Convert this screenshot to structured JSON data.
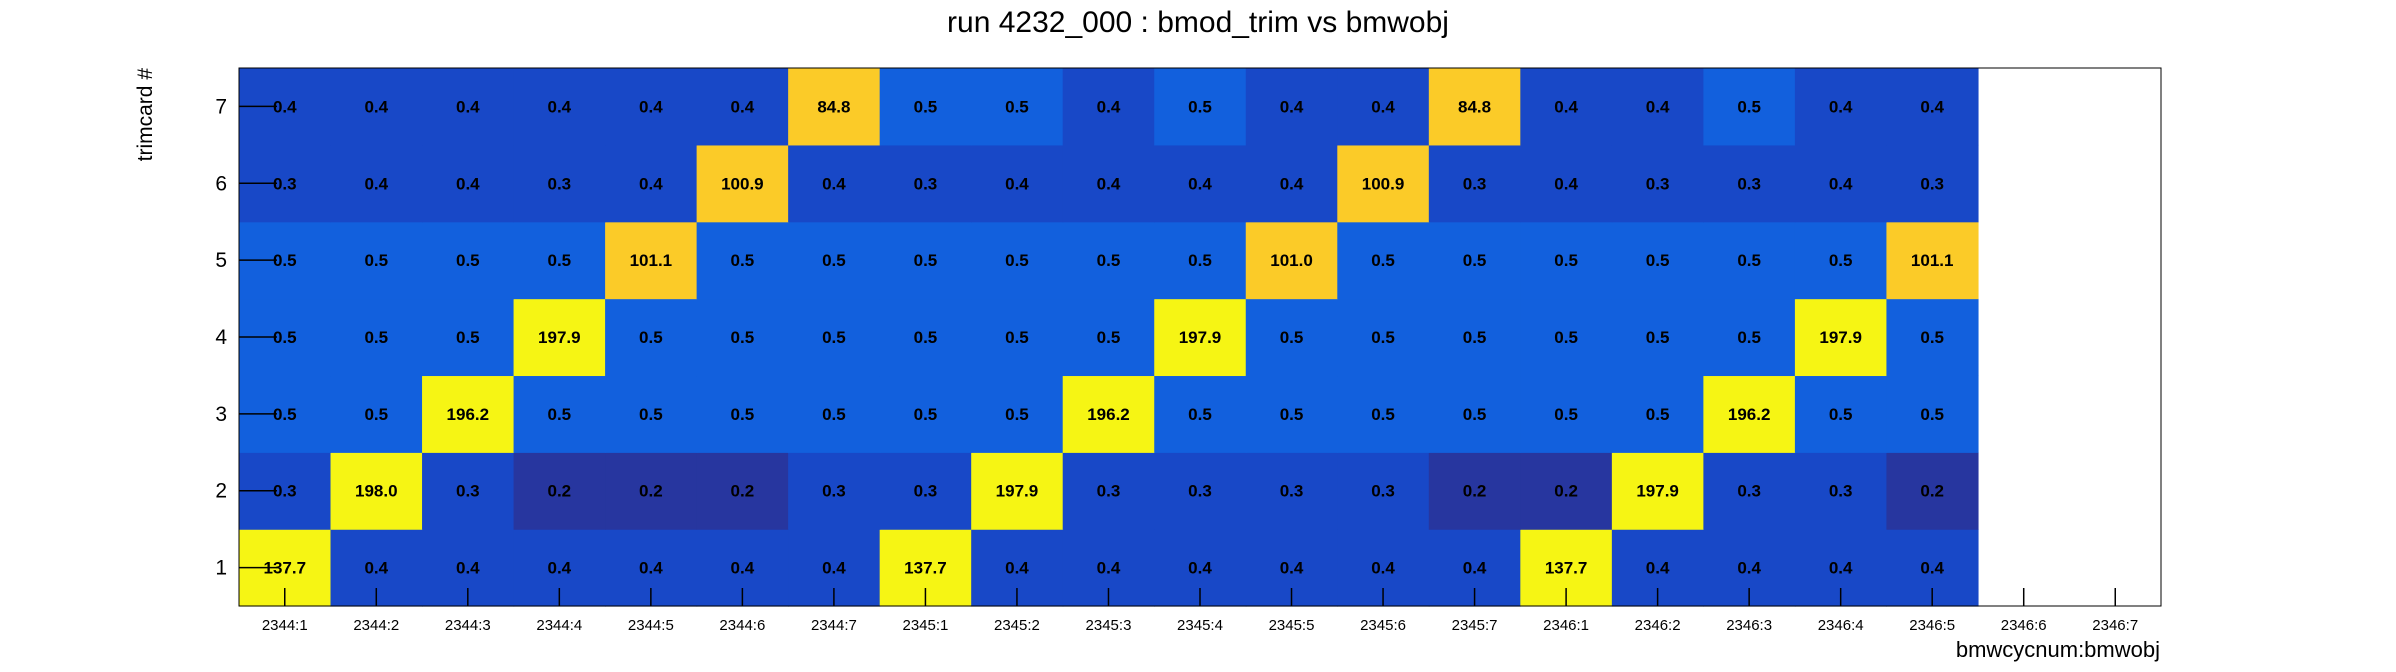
{
  "chart_data": {
    "type": "heatmap",
    "title": "run 4232_000 : bmod_trim vs bmwobj",
    "xlabel": "bmwcycnum:bmwobj",
    "ylabel": "trimcard #",
    "x_categories": [
      "2344:1",
      "2344:2",
      "2344:3",
      "2344:4",
      "2344:5",
      "2344:6",
      "2344:7",
      "2345:1",
      "2345:2",
      "2345:3",
      "2345:4",
      "2345:5",
      "2345:6",
      "2345:7",
      "2346:1",
      "2346:2",
      "2346:3",
      "2346:4",
      "2346:5",
      "2346:6",
      "2346:7"
    ],
    "y_categories": [
      "1",
      "2",
      "3",
      "4",
      "5",
      "6",
      "7"
    ],
    "values": [
      [
        "137.7",
        "0.4",
        "0.4",
        "0.4",
        "0.4",
        "0.4",
        "0.4",
        "137.7",
        "0.4",
        "0.4",
        "0.4",
        "0.4",
        "0.4",
        "0.4",
        "137.7",
        "0.4",
        "0.4",
        "0.4",
        "0.4",
        null,
        null
      ],
      [
        "0.3",
        "198.0",
        "0.3",
        "0.2",
        "0.2",
        "0.2",
        "0.3",
        "0.3",
        "197.9",
        "0.3",
        "0.3",
        "0.3",
        "0.3",
        "0.2",
        "0.2",
        "197.9",
        "0.3",
        "0.3",
        "0.2",
        null,
        null
      ],
      [
        "0.5",
        "0.5",
        "196.2",
        "0.5",
        "0.5",
        "0.5",
        "0.5",
        "0.5",
        "0.5",
        "196.2",
        "0.5",
        "0.5",
        "0.5",
        "0.5",
        "0.5",
        "0.5",
        "196.2",
        "0.5",
        "0.5",
        null,
        null
      ],
      [
        "0.5",
        "0.5",
        "0.5",
        "197.9",
        "0.5",
        "0.5",
        "0.5",
        "0.5",
        "0.5",
        "0.5",
        "197.9",
        "0.5",
        "0.5",
        "0.5",
        "0.5",
        "0.5",
        "0.5",
        "197.9",
        "0.5",
        null,
        null
      ],
      [
        "0.5",
        "0.5",
        "0.5",
        "0.5",
        "101.1",
        "0.5",
        "0.5",
        "0.5",
        "0.5",
        "0.5",
        "0.5",
        "101.0",
        "0.5",
        "0.5",
        "0.5",
        "0.5",
        "0.5",
        "0.5",
        "101.1",
        null,
        null
      ],
      [
        "0.3",
        "0.4",
        "0.4",
        "0.3",
        "0.4",
        "100.9",
        "0.4",
        "0.3",
        "0.4",
        "0.4",
        "0.4",
        "0.4",
        "100.9",
        "0.3",
        "0.4",
        "0.3",
        "0.3",
        "0.4",
        "0.3",
        null,
        null
      ],
      [
        "0.4",
        "0.4",
        "0.4",
        "0.4",
        "0.4",
        "0.4",
        "84.8",
        "0.5",
        "0.5",
        "0.4",
        "0.5",
        "0.4",
        "0.4",
        "84.8",
        "0.4",
        "0.4",
        "0.5",
        "0.4",
        "0.4",
        null,
        null
      ]
    ],
    "colors": {
      "low_dark": "#27369F",
      "low_mid": "#1848C7",
      "low": "#1260DD",
      "mid_high": "#FBCB28",
      "high": "#F6F514",
      "frame": "#000000",
      "text": "#000000"
    },
    "grid": false,
    "legend": "none"
  }
}
